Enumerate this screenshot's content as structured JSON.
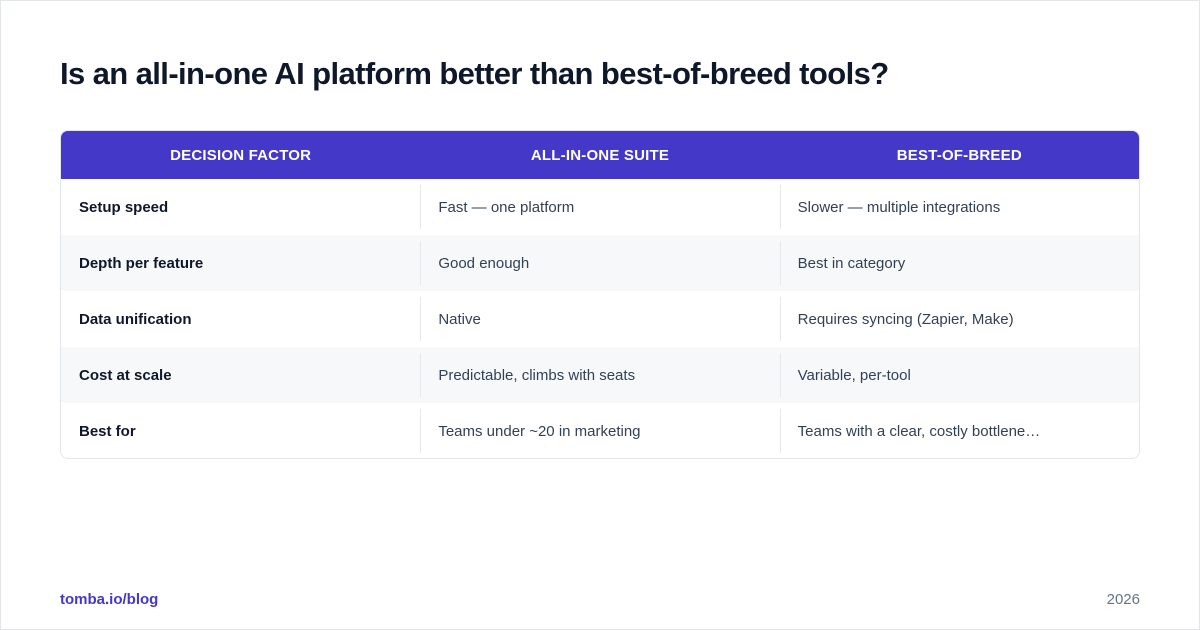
{
  "title": "Is an all-in-one AI platform better than best-of-breed tools?",
  "table": {
    "headers": [
      "DECISION FACTOR",
      "ALL-IN-ONE SUITE",
      "BEST-OF-BREED"
    ],
    "rows": [
      [
        "Setup speed",
        "Fast — one platform",
        "Slower — multiple integrations"
      ],
      [
        "Depth per feature",
        "Good enough",
        "Best in category"
      ],
      [
        "Data unification",
        "Native",
        "Requires syncing (Zapier, Make)"
      ],
      [
        "Cost at scale",
        "Predictable, climbs with seats",
        "Variable, per-tool"
      ],
      [
        "Best for",
        "Teams under ~20 in marketing",
        "Teams with a clear, costly bottlene…"
      ]
    ]
  },
  "footer": {
    "source": "tomba.io/blog",
    "year": "2026"
  },
  "colors": {
    "accent": "#4438c9",
    "title": "#0f172a",
    "body_text": "#334155",
    "alt_row": "#f7f8fa"
  }
}
